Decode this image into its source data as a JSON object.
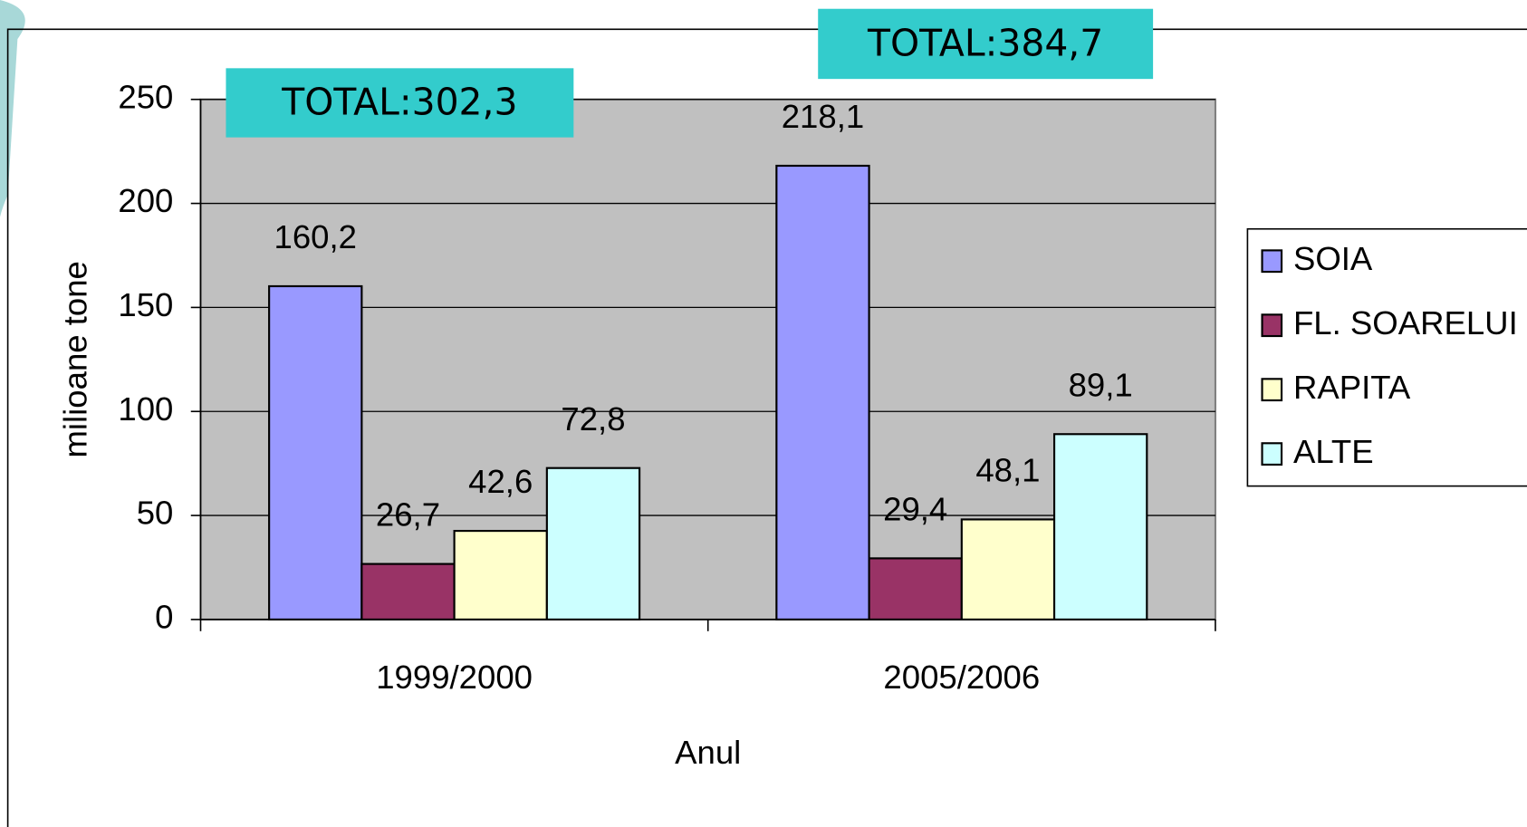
{
  "chart_data": {
    "type": "bar",
    "y_label": "milioane tone",
    "x_label": "Anul",
    "categories": [
      "1999/2000",
      "2005/2006"
    ],
    "series": [
      {
        "name": "SOIA",
        "color": "#9999ff",
        "values": [
          160.2,
          218.1
        ],
        "value_labels": [
          "160,2",
          "218,1"
        ]
      },
      {
        "name": "FL. SOARELUI",
        "color": "#993366",
        "values": [
          26.7,
          29.4
        ],
        "value_labels": [
          "26,7",
          "29,4"
        ]
      },
      {
        "name": "RAPITA",
        "color": "#ffffcc",
        "values": [
          42.6,
          48.1
        ],
        "value_labels": [
          "42,6",
          "48,1"
        ]
      },
      {
        "name": "ALTE",
        "color": "#ccffff",
        "values": [
          72.8,
          89.1
        ],
        "value_labels": [
          "72,8",
          "89,1"
        ]
      }
    ],
    "annotations": [
      "TOTAL:302,3",
      "TOTAL:384,7"
    ],
    "ylim": [
      0,
      250
    ],
    "yticks": [
      0,
      50,
      100,
      150,
      200,
      250
    ],
    "grid": true,
    "legend": "right"
  }
}
